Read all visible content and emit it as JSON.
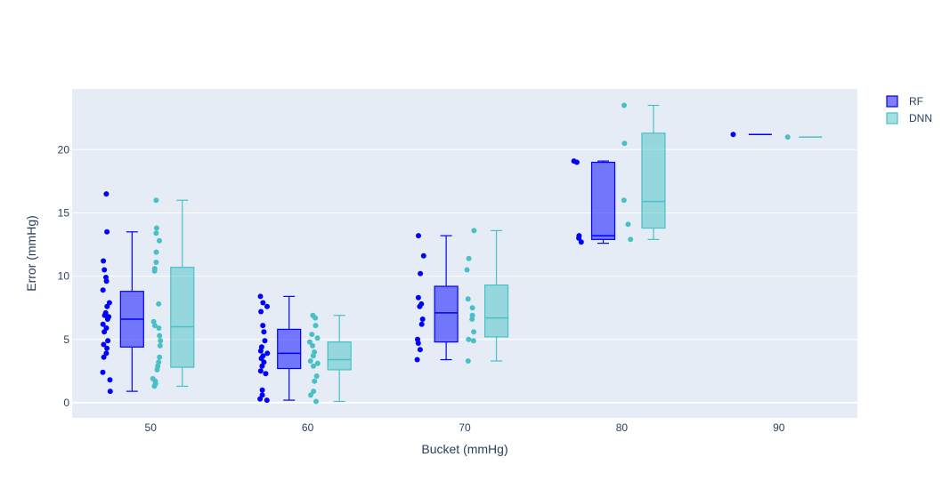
{
  "chart_data": {
    "type": "box",
    "xlabel": "Bucket (mmHg)",
    "ylabel": "Error (mmHg)",
    "categories": [
      "50",
      "60",
      "70",
      "80",
      "90"
    ],
    "x_ticks": [
      "50",
      "60",
      "70",
      "80",
      "90"
    ],
    "y_ticks": [
      "0",
      "5",
      "10",
      "15",
      "20"
    ],
    "ylim": [
      -1.2,
      24.8
    ],
    "grid": true,
    "legend_position": "top-right",
    "colors": {
      "plot_bg": "#e5ecf6",
      "grid": "#ffffff",
      "RF": "#0000ff",
      "DNN": "#48c1c6"
    },
    "series": [
      {
        "name": "RF",
        "boxes": [
          {
            "category": "50",
            "min": 0.9,
            "q1": 4.4,
            "median": 6.6,
            "q3": 8.8,
            "max": 13.5,
            "points": [
              16.5,
              13.5,
              11.2,
              10.5,
              9.9,
              9.6,
              8.9,
              7.9,
              7.6,
              7.1,
              6.9,
              6.8,
              6.6,
              6.2,
              5.9,
              5.6,
              4.9,
              4.6,
              4.3,
              3.9,
              3.6,
              2.4,
              1.8,
              0.9
            ]
          },
          {
            "category": "60",
            "min": 0.2,
            "q1": 2.7,
            "median": 3.9,
            "q3": 5.8,
            "max": 8.4,
            "points": [
              8.4,
              7.9,
              7.6,
              7.2,
              6.1,
              5.6,
              4.9,
              4.4,
              4.1,
              3.9,
              3.7,
              3.5,
              3.2,
              2.9,
              2.5,
              2.3,
              1.0,
              0.6,
              0.3,
              0.2
            ]
          },
          {
            "category": "70",
            "min": 3.4,
            "q1": 4.8,
            "median": 7.1,
            "q3": 9.2,
            "max": 13.2,
            "points": [
              13.2,
              11.6,
              10.2,
              8.3,
              7.8,
              7.6,
              6.6,
              6.2,
              5.0,
              4.7,
              4.2,
              3.4
            ]
          },
          {
            "category": "80",
            "min": 12.6,
            "q1": 12.9,
            "median": 13.2,
            "q3": 19.0,
            "max": 19.1,
            "points": [
              19.1,
              19.0,
              13.2,
              13.0,
              12.7
            ]
          },
          {
            "category": "90",
            "min": 21.2,
            "q1": 21.2,
            "median": 21.2,
            "q3": 21.2,
            "max": 21.2,
            "points": [
              21.2
            ]
          }
        ]
      },
      {
        "name": "DNN",
        "boxes": [
          {
            "category": "50",
            "min": 1.3,
            "q1": 2.8,
            "median": 6.0,
            "q3": 10.7,
            "max": 16.0,
            "points": [
              16.0,
              13.8,
              13.4,
              12.8,
              11.9,
              11.1,
              10.6,
              10.4,
              7.8,
              6.4,
              6.1,
              5.9,
              5.3,
              4.9,
              4.5,
              3.6,
              3.2,
              2.9,
              2.6,
              1.9,
              1.7,
              1.5,
              1.3
            ]
          },
          {
            "category": "60",
            "min": 0.1,
            "q1": 2.6,
            "median": 3.4,
            "q3": 4.8,
            "max": 6.9,
            "points": [
              6.9,
              6.7,
              6.1,
              5.4,
              5.1,
              4.8,
              4.5,
              4.0,
              3.7,
              3.3,
              3.1,
              2.9,
              2.1,
              1.7,
              0.9,
              0.6,
              0.1
            ]
          },
          {
            "category": "70",
            "min": 3.3,
            "q1": 5.2,
            "median": 6.7,
            "q3": 9.3,
            "max": 13.6,
            "points": [
              13.6,
              11.4,
              10.5,
              8.2,
              7.5,
              6.9,
              6.6,
              5.6,
              5.0,
              4.9,
              3.3
            ]
          },
          {
            "category": "80",
            "min": 12.9,
            "q1": 13.8,
            "median": 15.9,
            "q3": 21.3,
            "max": 23.5,
            "points": [
              23.5,
              20.5,
              16.0,
              14.1,
              12.9
            ]
          },
          {
            "category": "90",
            "min": 21.0,
            "q1": 21.0,
            "median": 21.0,
            "q3": 21.0,
            "max": 21.0,
            "points": [
              21.0
            ]
          }
        ]
      }
    ]
  }
}
